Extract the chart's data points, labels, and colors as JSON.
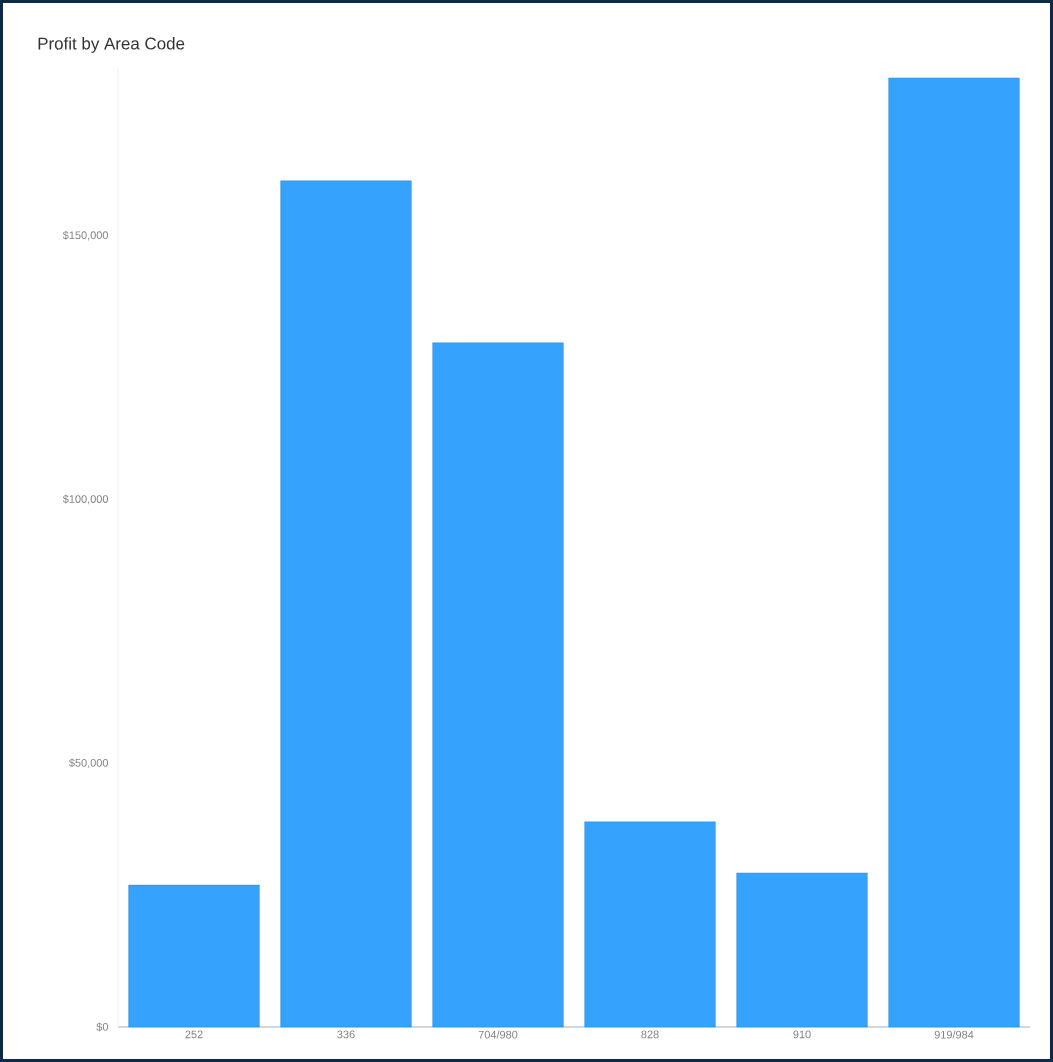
{
  "chart_data": {
    "type": "bar",
    "title": "Profit by Area Code",
    "categories": [
      "252",
      "336",
      "704/980",
      "828",
      "910",
      "919/984"
    ],
    "values": [
      26900,
      160400,
      129700,
      38900,
      29200,
      179900
    ],
    "color": "#35a2fd",
    "ylim": [
      0,
      182000
    ],
    "yticks": [
      {
        "value": 0,
        "label": "$0"
      },
      {
        "value": 50000,
        "label": "$50,000"
      },
      {
        "value": 100000,
        "label": "$100,000"
      },
      {
        "value": 150000,
        "label": "$150,000"
      }
    ]
  }
}
